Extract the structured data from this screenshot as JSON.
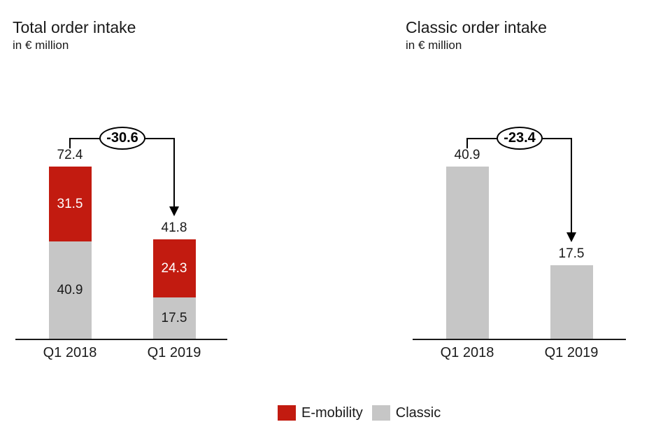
{
  "colors": {
    "e_mobility": "#c21b10",
    "classic": "#c6c6c6",
    "text": "#1a1a1a",
    "background": "#ffffff",
    "annotation": "#000000",
    "label_on_red": "#ffffff",
    "label_on_gray": "#1a1a1a"
  },
  "chart_data": [
    {
      "type": "bar",
      "stacked": true,
      "title": "Total order intake",
      "subtitle": "in € million",
      "categories": [
        "Q1 2018",
        "Q1 2019"
      ],
      "series": [
        {
          "name": "Classic",
          "color_key": "classic",
          "values": [
            40.9,
            17.5
          ]
        },
        {
          "name": "E-mobility",
          "color_key": "e_mobility",
          "values": [
            31.5,
            24.3
          ]
        }
      ],
      "totals": [
        72.4,
        41.8
      ],
      "delta": {
        "label": "-30.6",
        "value": -30.6,
        "from": "Q1 2018",
        "to": "Q1 2019"
      },
      "ylim": [
        0,
        72.4
      ],
      "grid": false,
      "axes": "x-baseline-only",
      "value_labels": "totals above bars, segment values inside segments"
    },
    {
      "type": "bar",
      "stacked": false,
      "title": "Classic order intake",
      "subtitle": "in € million",
      "categories": [
        "Q1 2018",
        "Q1 2019"
      ],
      "series": [
        {
          "name": "Classic",
          "color_key": "classic",
          "values": [
            40.9,
            17.5
          ]
        }
      ],
      "totals": [
        40.9,
        17.5
      ],
      "delta": {
        "label": "-23.4",
        "value": -23.4,
        "from": "Q1 2018",
        "to": "Q1 2019"
      },
      "ylim": [
        0,
        40.9
      ],
      "grid": false,
      "axes": "x-baseline-only",
      "value_labels": "totals above bars"
    }
  ],
  "legend": {
    "position": "bottom-center",
    "items": [
      {
        "label": "E-mobility",
        "color_key": "e_mobility",
        "color": "#c21b10"
      },
      {
        "label": "Classic",
        "color_key": "classic",
        "color": "#c6c6c6"
      }
    ]
  }
}
